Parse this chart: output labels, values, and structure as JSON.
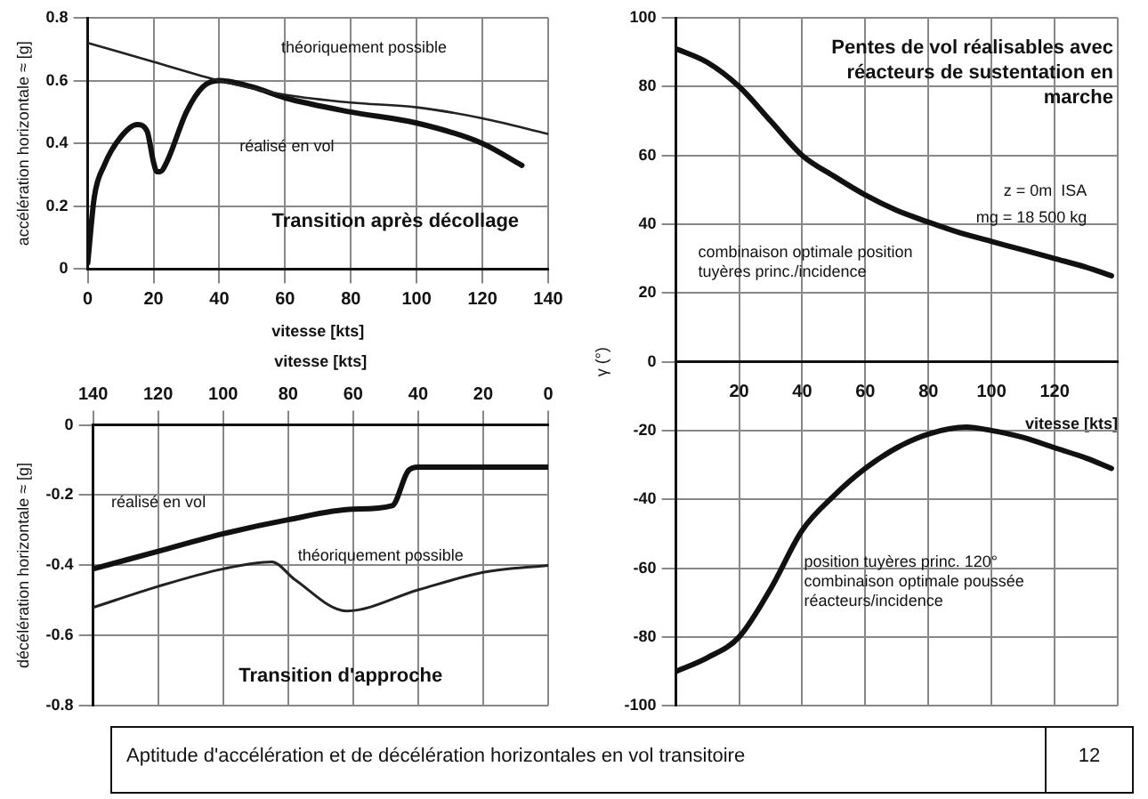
{
  "chart_data": [
    {
      "type": "line",
      "xlabel": "vitesse [kts]",
      "ylabel": "accélération horizontale ≈ [g]",
      "xlim": [
        0,
        140
      ],
      "xticks": [
        0,
        20,
        40,
        60,
        80,
        100,
        120,
        140
      ],
      "ylim": [
        0,
        0.8
      ],
      "yticks": [
        0,
        0.2,
        0.4,
        0.6,
        0.8
      ],
      "grid": true,
      "annotations": [
        "Transition après décollage"
      ],
      "series": [
        {
          "name": "théoriquement possible",
          "color": "#222222",
          "x": [
            0,
            20,
            40,
            60,
            80,
            100,
            120,
            140
          ],
          "values": [
            0.72,
            0.66,
            0.6,
            0.555,
            0.53,
            0.515,
            0.48,
            0.43
          ]
        },
        {
          "name": "réalisé en vol",
          "color": "#111111",
          "x": [
            0,
            2,
            5,
            10,
            15,
            18,
            20,
            21,
            22,
            24,
            30,
            35,
            40,
            50,
            60,
            80,
            100,
            120,
            132
          ],
          "values": [
            0.02,
            0.23,
            0.33,
            0.42,
            0.46,
            0.44,
            0.34,
            0.31,
            0.31,
            0.34,
            0.5,
            0.58,
            0.6,
            0.58,
            0.545,
            0.5,
            0.465,
            0.4,
            0.33
          ]
        }
      ]
    },
    {
      "type": "line",
      "xlabel": "vitesse [kts]",
      "ylabel": "décélération horizontale ≈ [g]",
      "xlim": [
        140,
        0
      ],
      "xticks": [
        140,
        120,
        100,
        80,
        60,
        40,
        20,
        0
      ],
      "ylim": [
        -0.8,
        0
      ],
      "yticks": [
        -0.8,
        -0.6,
        -0.4,
        -0.2,
        0
      ],
      "grid": true,
      "annotations": [
        "Transition d'approche"
      ],
      "series": [
        {
          "name": "réalisé en vol",
          "color": "#111111",
          "x": [
            140,
            120,
            100,
            80,
            60,
            48,
            43,
            40,
            0
          ],
          "values": [
            -0.41,
            -0.36,
            -0.31,
            -0.27,
            -0.24,
            -0.23,
            -0.13,
            -0.12,
            -0.12
          ]
        },
        {
          "name": "théoriquement possible",
          "color": "#222222",
          "x": [
            140,
            120,
            100,
            85,
            78,
            62,
            40,
            20,
            0
          ],
          "values": [
            -0.52,
            -0.46,
            -0.41,
            -0.39,
            -0.44,
            -0.53,
            -0.47,
            -0.42,
            -0.4
          ]
        }
      ]
    },
    {
      "type": "line",
      "xlabel": "vitesse [kts]",
      "ylabel": "γ (°)",
      "xlim": [
        0,
        140
      ],
      "xticks": [
        {
          "value": 0,
          "label": null
        },
        20,
        40,
        60,
        80,
        100,
        120,
        {
          "value": 140,
          "label": null
        }
      ],
      "ylim": [
        -100,
        100
      ],
      "yticks": [
        -100,
        -80,
        -60,
        -40,
        -20,
        0,
        20,
        40,
        60,
        80,
        100
      ],
      "grid": true,
      "annotations": [
        "Pentes de vol réalisables avec réacteurs de sustentation en marche",
        "z = 0m  ISA",
        "mg = 18 500 kg",
        "Aptitude d'accélération et de décélération horizontales en vol transitoire",
        "12"
      ],
      "series": [
        {
          "name": "combinaison optimale position tuyères princ./incidence",
          "color": "#111111",
          "x": [
            0,
            10,
            20,
            30,
            40,
            50,
            60,
            70,
            80,
            90,
            100,
            110,
            120,
            130,
            138
          ],
          "values": [
            91,
            87,
            80,
            70,
            60,
            54,
            48.5,
            44,
            40.6,
            37.5,
            35,
            32.5,
            30,
            27.5,
            25
          ]
        },
        {
          "name": "position tuyères princ. 120° combinaison optimale poussée réacteurs/incidence",
          "color": "#111111",
          "x": [
            0,
            10,
            20,
            30,
            40,
            50,
            60,
            70,
            80,
            92,
            100,
            110,
            120,
            130,
            138
          ],
          "values": [
            -90,
            -86,
            -80,
            -66,
            -49,
            -39,
            -31,
            -25,
            -21,
            -19,
            -20,
            -22,
            -25,
            -28,
            -31
          ]
        }
      ]
    }
  ]
}
